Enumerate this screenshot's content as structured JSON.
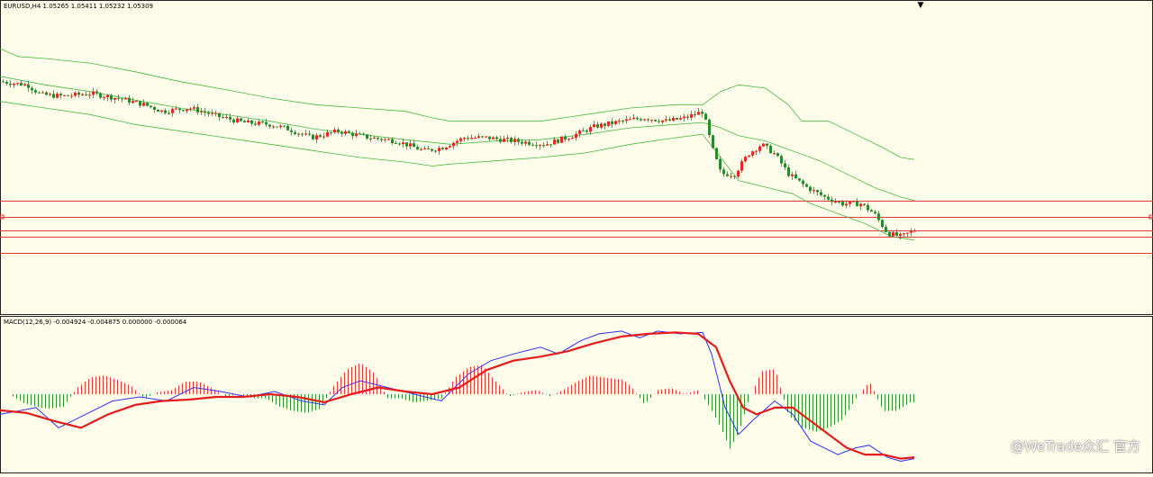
{
  "colors": {
    "background": "#fefde9",
    "frame": "#222222",
    "bull_candle": "#e22a1f",
    "bear_candle": "#2a8a2a",
    "bollinger": "#48b848",
    "level_line": "#e03a3a",
    "macd_line": "#2f2ff0",
    "signal_line": "#e31d1d",
    "hist_positive": "#e23a3a",
    "hist_negative": "#2f922f"
  },
  "price_panel": {
    "symbol": "EURUSD,H4",
    "ohlc": "1.05265 1.05411 1.05232 1.05309",
    "label": "EURUSD,H4  1.05265 1.05411 1.05232 1.05309"
  },
  "macd_panel": {
    "label": "MACD(12,26,9) -0.004924 -0.004875 0.000000 -0.000064"
  },
  "watermark": {
    "text": "@WeTrade众汇 官方"
  },
  "chart_data": [
    {
      "type": "candlestick",
      "panel": "price",
      "title": "EURUSD,H4",
      "ohlc_last": {
        "open": 1.05265,
        "high": 1.05411,
        "low": 1.05232,
        "close": 1.05309
      },
      "y_scale": "price",
      "price_path": [
        [
          0,
          0.94
        ],
        [
          30,
          0.935
        ],
        [
          45,
          0.92
        ],
        [
          70,
          0.918
        ],
        [
          100,
          0.922
        ],
        [
          130,
          0.915
        ],
        [
          160,
          0.905
        ],
        [
          180,
          0.895
        ],
        [
          210,
          0.9
        ],
        [
          240,
          0.888
        ],
        [
          270,
          0.878
        ],
        [
          300,
          0.875
        ],
        [
          320,
          0.868
        ],
        [
          345,
          0.855
        ],
        [
          375,
          0.865
        ],
        [
          410,
          0.855
        ],
        [
          440,
          0.85
        ],
        [
          470,
          0.835
        ],
        [
          490,
          0.84
        ],
        [
          515,
          0.855
        ],
        [
          540,
          0.855
        ],
        [
          570,
          0.85
        ],
        [
          605,
          0.845
        ],
        [
          635,
          0.858
        ],
        [
          660,
          0.872
        ],
        [
          690,
          0.88
        ],
        [
          715,
          0.885
        ],
        [
          740,
          0.88
        ],
        [
          760,
          0.885
        ],
        [
          780,
          0.895
        ],
        [
          790,
          0.84
        ],
        [
          800,
          0.8
        ],
        [
          815,
          0.8
        ],
        [
          830,
          0.83
        ],
        [
          845,
          0.845
        ],
        [
          860,
          0.83
        ],
        [
          875,
          0.8
        ],
        [
          895,
          0.78
        ],
        [
          915,
          0.765
        ],
        [
          935,
          0.755
        ],
        [
          955,
          0.755
        ],
        [
          970,
          0.74
        ],
        [
          985,
          0.71
        ],
        [
          1000,
          0.705
        ],
        [
          1015,
          0.715
        ]
      ],
      "bollinger_bands": {
        "period_hint": "20",
        "upper": [
          [
            0,
            0.99
          ],
          [
            20,
            0.978
          ],
          [
            50,
            0.975
          ],
          [
            100,
            0.968
          ],
          [
            150,
            0.955
          ],
          [
            200,
            0.94
          ],
          [
            250,
            0.928
          ],
          [
            300,
            0.915
          ],
          [
            350,
            0.905
          ],
          [
            400,
            0.9
          ],
          [
            450,
            0.895
          ],
          [
            480,
            0.885
          ],
          [
            500,
            0.88
          ],
          [
            550,
            0.88
          ],
          [
            600,
            0.88
          ],
          [
            650,
            0.89
          ],
          [
            700,
            0.9
          ],
          [
            750,
            0.905
          ],
          [
            780,
            0.905
          ],
          [
            800,
            0.925
          ],
          [
            820,
            0.935
          ],
          [
            850,
            0.93
          ],
          [
            875,
            0.905
          ],
          [
            890,
            0.88
          ],
          [
            920,
            0.88
          ],
          [
            950,
            0.86
          ],
          [
            980,
            0.84
          ],
          [
            1000,
            0.825
          ],
          [
            1015,
            0.822
          ]
        ],
        "middle": [
          [
            0,
            0.948
          ],
          [
            50,
            0.935
          ],
          [
            100,
            0.925
          ],
          [
            150,
            0.912
          ],
          [
            200,
            0.9
          ],
          [
            250,
            0.89
          ],
          [
            300,
            0.88
          ],
          [
            350,
            0.868
          ],
          [
            400,
            0.86
          ],
          [
            450,
            0.852
          ],
          [
            500,
            0.845
          ],
          [
            550,
            0.85
          ],
          [
            600,
            0.852
          ],
          [
            650,
            0.86
          ],
          [
            700,
            0.87
          ],
          [
            750,
            0.875
          ],
          [
            780,
            0.878
          ],
          [
            800,
            0.87
          ],
          [
            820,
            0.858
          ],
          [
            850,
            0.85
          ],
          [
            880,
            0.835
          ],
          [
            910,
            0.82
          ],
          [
            940,
            0.8
          ],
          [
            970,
            0.78
          ],
          [
            1000,
            0.765
          ],
          [
            1015,
            0.76
          ]
        ],
        "lower": [
          [
            0,
            0.91
          ],
          [
            50,
            0.9
          ],
          [
            100,
            0.89
          ],
          [
            150,
            0.875
          ],
          [
            200,
            0.865
          ],
          [
            250,
            0.855
          ],
          [
            300,
            0.845
          ],
          [
            350,
            0.835
          ],
          [
            400,
            0.825
          ],
          [
            450,
            0.818
          ],
          [
            480,
            0.812
          ],
          [
            500,
            0.815
          ],
          [
            550,
            0.82
          ],
          [
            600,
            0.825
          ],
          [
            650,
            0.832
          ],
          [
            700,
            0.845
          ],
          [
            750,
            0.855
          ],
          [
            780,
            0.86
          ],
          [
            800,
            0.825
          ],
          [
            820,
            0.79
          ],
          [
            850,
            0.78
          ],
          [
            880,
            0.77
          ],
          [
            900,
            0.755
          ],
          [
            930,
            0.74
          ],
          [
            960,
            0.725
          ],
          [
            990,
            0.705
          ],
          [
            1015,
            0.7
          ]
        ]
      },
      "horizontal_levels": [
        0.76,
        0.735,
        0.715,
        0.705,
        0.68
      ],
      "level_markers_at": [
        0.735
      ],
      "top_marker": "▼"
    },
    {
      "type": "macd",
      "panel": "indicator",
      "title": "MACD(12,26,9)",
      "params": {
        "fast": 12,
        "slow": 26,
        "signal": 9
      },
      "values_last": {
        "macd": -0.004924,
        "signal": -0.004875,
        "zero": 0.0,
        "histogram": -6.4e-05
      },
      "macd_line": [
        [
          0,
          0.35
        ],
        [
          40,
          0.4
        ],
        [
          65,
          0.25
        ],
        [
          95,
          0.35
        ],
        [
          125,
          0.45
        ],
        [
          155,
          0.48
        ],
        [
          185,
          0.45
        ],
        [
          215,
          0.55
        ],
        [
          245,
          0.52
        ],
        [
          275,
          0.48
        ],
        [
          305,
          0.52
        ],
        [
          335,
          0.45
        ],
        [
          360,
          0.42
        ],
        [
          380,
          0.55
        ],
        [
          400,
          0.6
        ],
        [
          430,
          0.55
        ],
        [
          460,
          0.5
        ],
        [
          490,
          0.45
        ],
        [
          520,
          0.65
        ],
        [
          545,
          0.75
        ],
        [
          570,
          0.8
        ],
        [
          600,
          0.85
        ],
        [
          620,
          0.8
        ],
        [
          645,
          0.9
        ],
        [
          665,
          0.95
        ],
        [
          690,
          0.97
        ],
        [
          710,
          0.92
        ],
        [
          730,
          0.97
        ],
        [
          755,
          0.95
        ],
        [
          780,
          0.96
        ],
        [
          790,
          0.8
        ],
        [
          805,
          0.4
        ],
        [
          820,
          0.2
        ],
        [
          835,
          0.3
        ],
        [
          860,
          0.45
        ],
        [
          880,
          0.35
        ],
        [
          900,
          0.15
        ],
        [
          930,
          0.05
        ],
        [
          950,
          0.1
        ],
        [
          965,
          0.12
        ],
        [
          985,
          0.03
        ],
        [
          1000,
          0.0
        ],
        [
          1015,
          0.02
        ]
      ],
      "signal_line": [
        [
          0,
          0.38
        ],
        [
          30,
          0.36
        ],
        [
          60,
          0.3
        ],
        [
          90,
          0.25
        ],
        [
          120,
          0.35
        ],
        [
          150,
          0.42
        ],
        [
          180,
          0.45
        ],
        [
          210,
          0.46
        ],
        [
          240,
          0.48
        ],
        [
          270,
          0.48
        ],
        [
          300,
          0.5
        ],
        [
          330,
          0.48
        ],
        [
          360,
          0.44
        ],
        [
          390,
          0.5
        ],
        [
          420,
          0.55
        ],
        [
          450,
          0.52
        ],
        [
          480,
          0.5
        ],
        [
          510,
          0.55
        ],
        [
          540,
          0.68
        ],
        [
          570,
          0.75
        ],
        [
          600,
          0.78
        ],
        [
          630,
          0.82
        ],
        [
          660,
          0.88
        ],
        [
          690,
          0.93
        ],
        [
          720,
          0.95
        ],
        [
          750,
          0.96
        ],
        [
          775,
          0.95
        ],
        [
          795,
          0.85
        ],
        [
          810,
          0.6
        ],
        [
          825,
          0.4
        ],
        [
          840,
          0.35
        ],
        [
          860,
          0.4
        ],
        [
          880,
          0.4
        ],
        [
          900,
          0.3
        ],
        [
          920,
          0.2
        ],
        [
          940,
          0.1
        ],
        [
          960,
          0.05
        ],
        [
          980,
          0.05
        ],
        [
          1000,
          0.02
        ],
        [
          1015,
          0.03
        ]
      ],
      "histogram": [
        [
          10,
          0.0
        ],
        [
          25,
          -0.2
        ],
        [
          40,
          -0.3
        ],
        [
          55,
          -0.35
        ],
        [
          70,
          -0.3
        ],
        [
          85,
          0.15
        ],
        [
          100,
          0.4
        ],
        [
          115,
          0.45
        ],
        [
          130,
          0.35
        ],
        [
          145,
          0.2
        ],
        [
          160,
          -0.1
        ],
        [
          175,
          0.05
        ],
        [
          190,
          0.1
        ],
        [
          205,
          0.3
        ],
        [
          220,
          0.3
        ],
        [
          235,
          0.15
        ],
        [
          250,
          -0.05
        ],
        [
          265,
          0.0
        ],
        [
          280,
          -0.1
        ],
        [
          295,
          -0.1
        ],
        [
          310,
          -0.3
        ],
        [
          325,
          -0.4
        ],
        [
          340,
          -0.45
        ],
        [
          355,
          -0.35
        ],
        [
          370,
          0.2
        ],
        [
          385,
          0.6
        ],
        [
          400,
          0.75
        ],
        [
          415,
          0.5
        ],
        [
          430,
          -0.1
        ],
        [
          445,
          -0.1
        ],
        [
          460,
          -0.2
        ],
        [
          475,
          -0.15
        ],
        [
          490,
          -0.1
        ],
        [
          505,
          0.4
        ],
        [
          520,
          0.65
        ],
        [
          535,
          0.7
        ],
        [
          550,
          0.3
        ],
        [
          565,
          -0.05
        ],
        [
          580,
          0.05
        ],
        [
          595,
          0.1
        ],
        [
          610,
          -0.05
        ],
        [
          625,
          0.1
        ],
        [
          640,
          0.3
        ],
        [
          655,
          0.45
        ],
        [
          670,
          0.4
        ],
        [
          690,
          0.35
        ],
        [
          700,
          0.2
        ],
        [
          715,
          -0.25
        ],
        [
          730,
          0.1
        ],
        [
          745,
          0.15
        ],
        [
          760,
          0.0
        ],
        [
          775,
          0.1
        ],
        [
          790,
          -0.4
        ],
        [
          800,
          -0.8
        ],
        [
          810,
          -1.3
        ],
        [
          820,
          -0.9
        ],
        [
          830,
          -0.2
        ],
        [
          845,
          0.55
        ],
        [
          860,
          0.6
        ],
        [
          875,
          -0.5
        ],
        [
          890,
          -0.8
        ],
        [
          905,
          -0.9
        ],
        [
          920,
          -0.8
        ],
        [
          935,
          -0.6
        ],
        [
          950,
          -0.1
        ],
        [
          965,
          0.3
        ],
        [
          980,
          -0.4
        ],
        [
          995,
          -0.4
        ],
        [
          1010,
          -0.2
        ]
      ]
    }
  ]
}
